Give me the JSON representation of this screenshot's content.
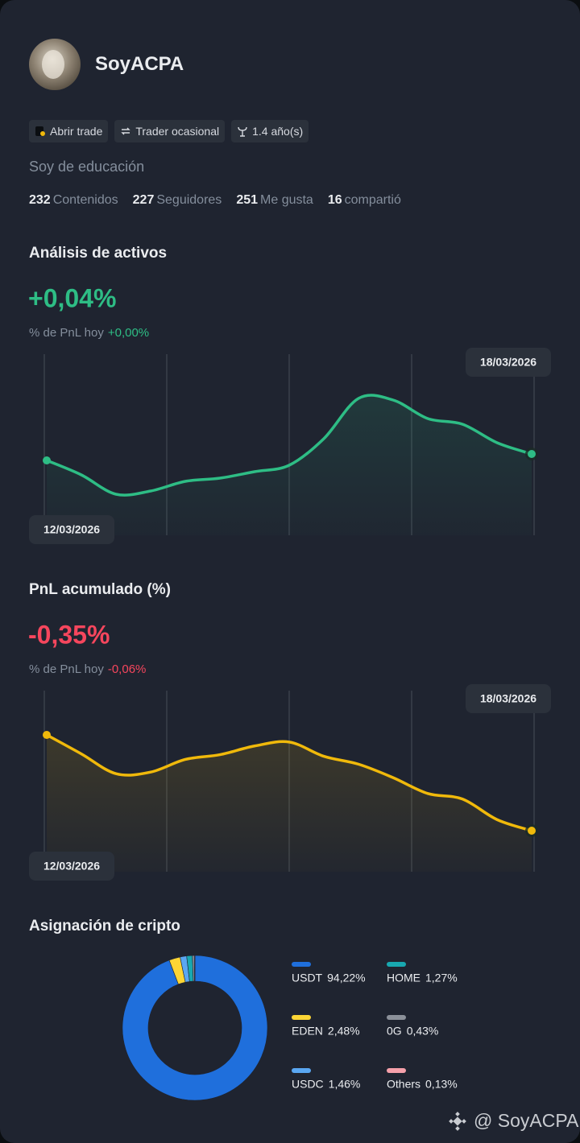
{
  "profile": {
    "name": "SoyACPA",
    "tags": [
      "Abrir trade",
      "Trader ocasional",
      "1.4 año(s)"
    ],
    "bio": "Soy de educación",
    "stats": [
      {
        "value": 232,
        "label": "Contenidos"
      },
      {
        "value": 227,
        "label": "Seguidores"
      },
      {
        "value": 251,
        "label": "Me gusta"
      },
      {
        "value": 16,
        "label": "compartió"
      }
    ]
  },
  "asset_analysis": {
    "title": "Análisis de activos",
    "headline": "+0,04%",
    "today_label": "% de PnL hoy",
    "today_value": "+0,00%",
    "start_date": "12/03/2026",
    "end_date": "18/03/2026",
    "color": "#2ebd85",
    "values": [
      4.8,
      3.0,
      0.6,
      1.0,
      2.2,
      2.6,
      3.4,
      4.2,
      7.5,
      12.5,
      12.3,
      10.0,
      9.3,
      7.0,
      5.6
    ]
  },
  "cumulative_pnl": {
    "title": "PnL acumulado (%)",
    "headline": "-0,35%",
    "today_label": "% de PnL hoy",
    "today_value": "-0,06%",
    "start_date": "12/03/2026",
    "end_date": "18/03/2026",
    "color": "#f0b90b",
    "values": [
      12.9,
      10.5,
      8.0,
      8.2,
      9.8,
      10.4,
      11.5,
      12.0,
      10.2,
      9.2,
      7.5,
      5.5,
      4.8,
      2.2,
      0.8
    ]
  },
  "allocation": {
    "title": "Asignación de cripto",
    "type": "donut",
    "categories": [
      "USDT",
      "EDEN",
      "USDC",
      "HOME",
      "0G",
      "Others"
    ],
    "values": [
      94.22,
      2.48,
      1.46,
      1.27,
      0.43,
      0.13
    ],
    "value_labels": [
      "94,22%",
      "2,48%",
      "1,46%",
      "1,27%",
      "0,43%",
      "0,13%"
    ],
    "colors": [
      "#1f6fdc",
      "#fcd535",
      "#5aa7f2",
      "#18a8b0",
      "#8b9099",
      "#f5a0aa"
    ]
  },
  "watermark": "@ SoyACPA"
}
